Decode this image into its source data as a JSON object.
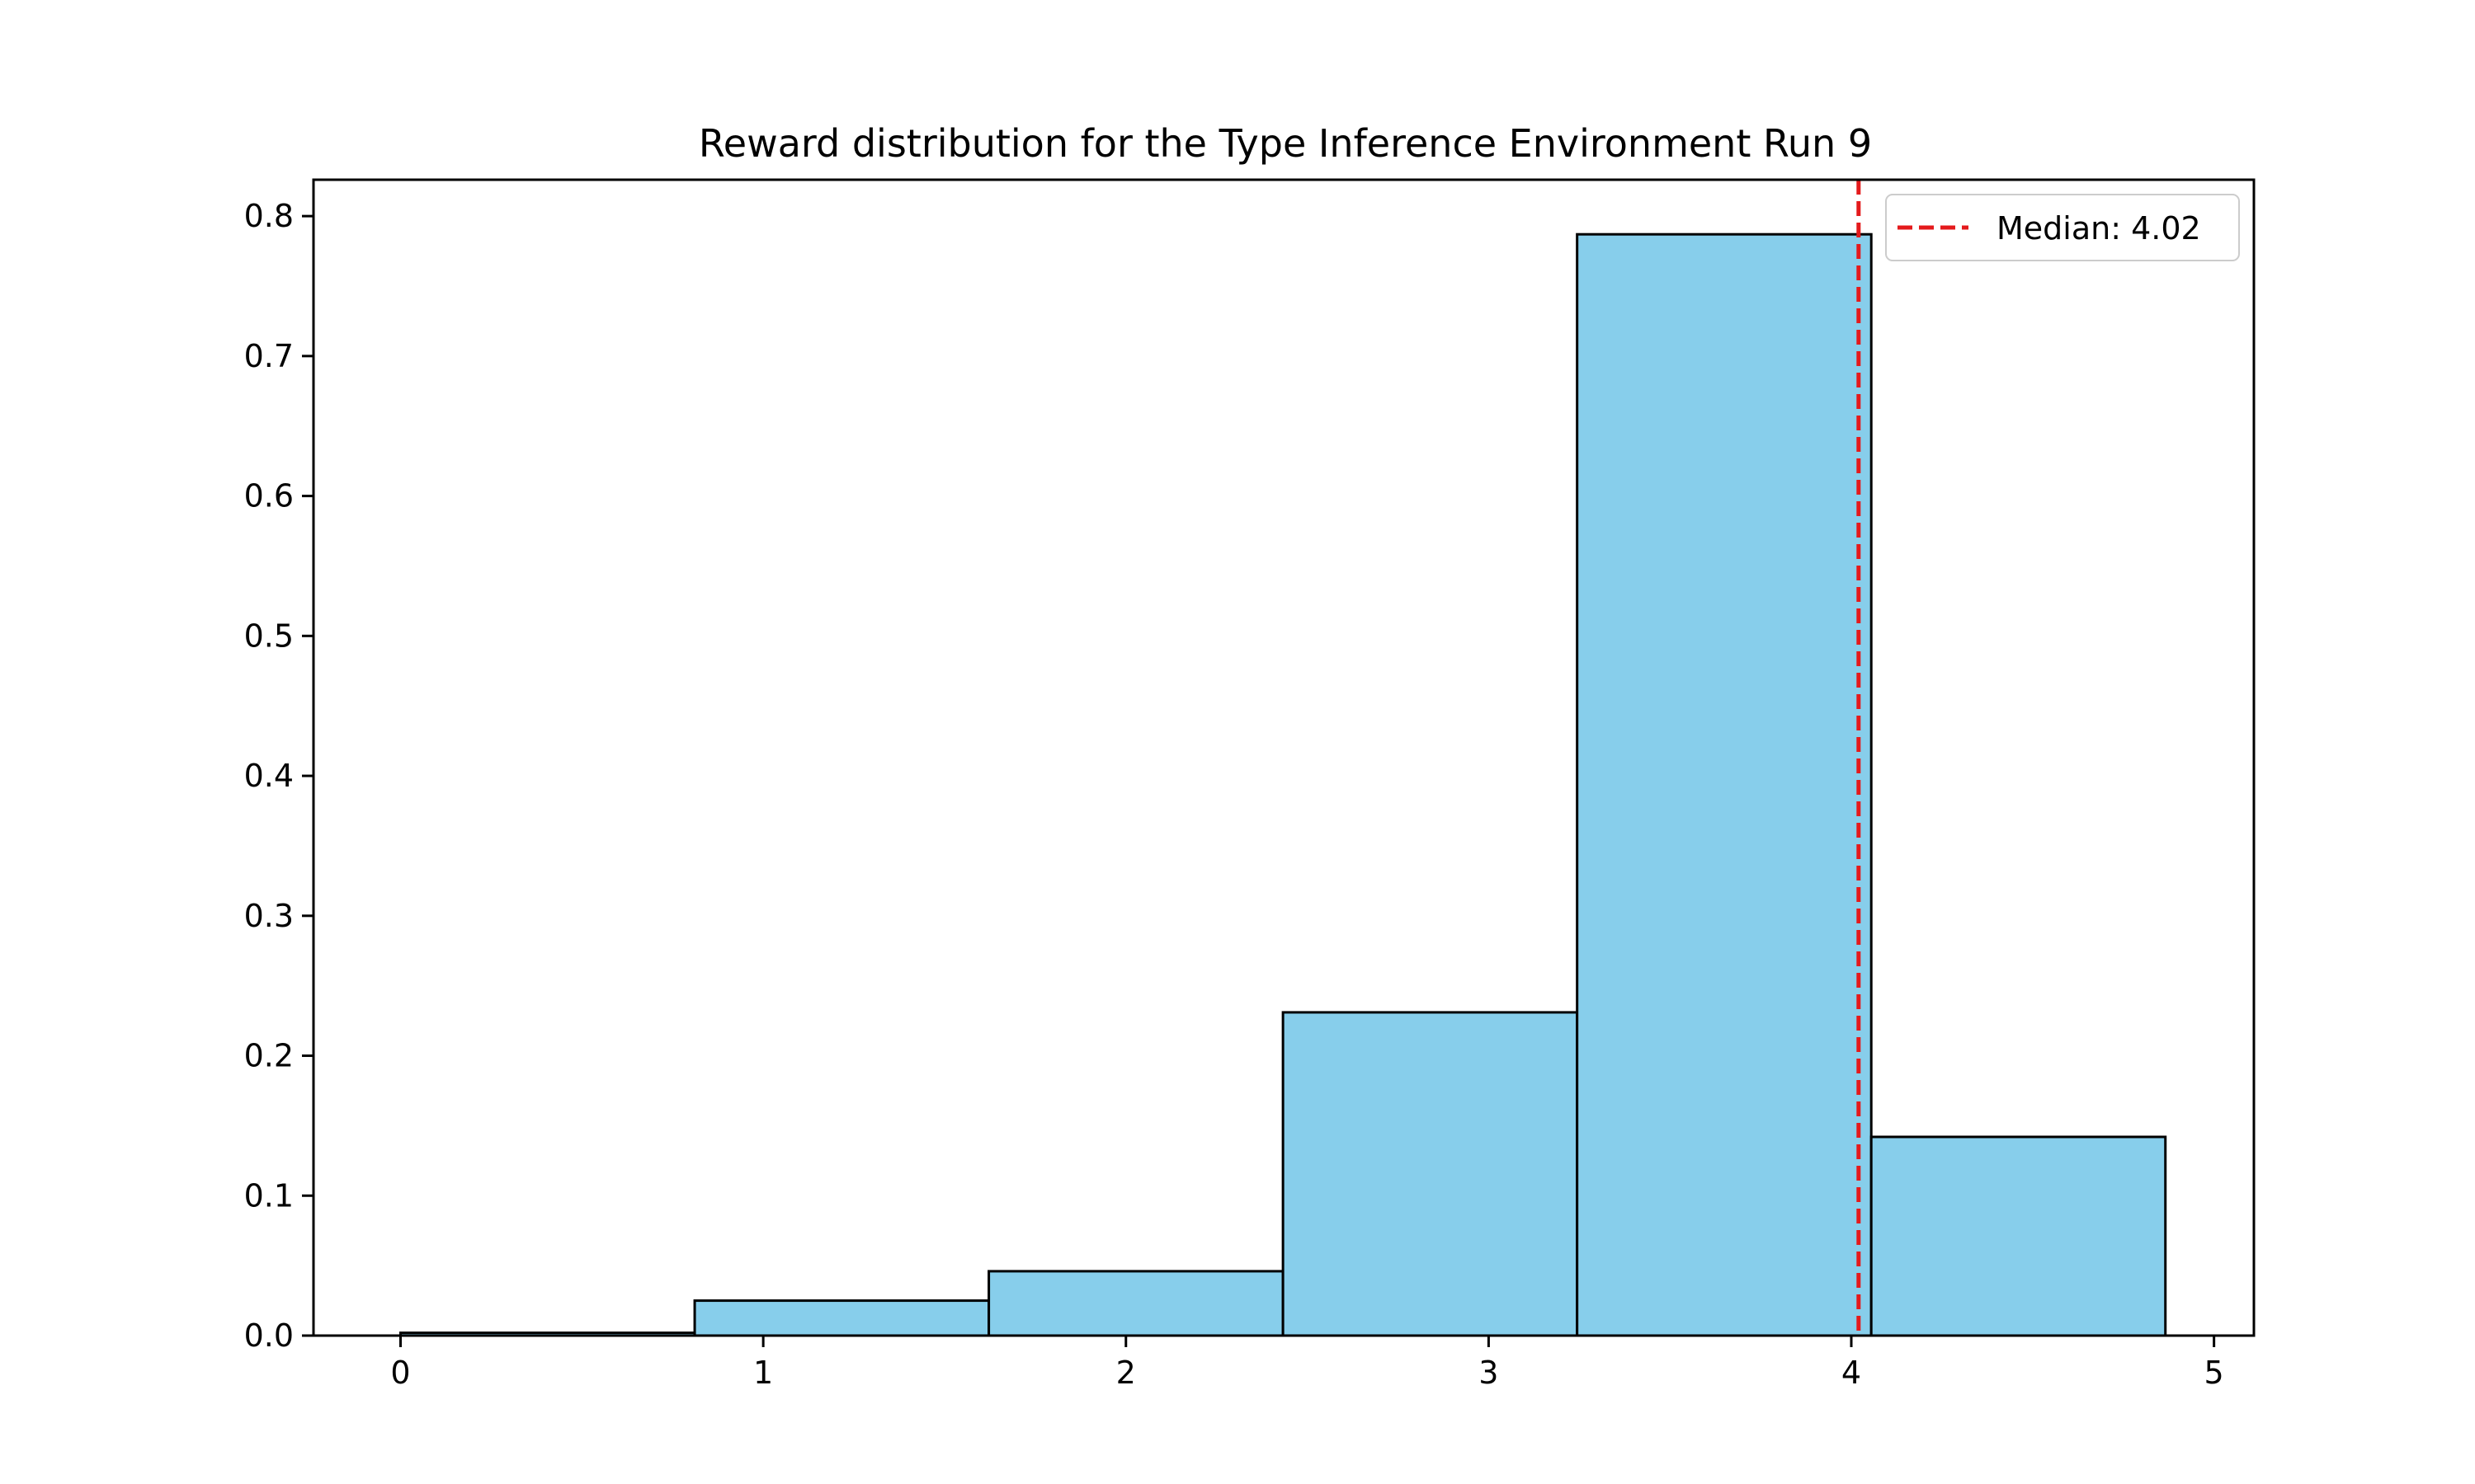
{
  "chart_data": {
    "type": "bar",
    "title": "Reward distribution for the Type Inference Environment Run 9",
    "xlabel": "",
    "ylabel": "",
    "xlim": [
      -0.24,
      5.11
    ],
    "ylim": [
      0,
      0.826
    ],
    "x_ticks": [
      0,
      1,
      2,
      3,
      4,
      5
    ],
    "y_ticks": [
      0.0,
      0.1,
      0.2,
      0.3,
      0.4,
      0.5,
      0.6,
      0.7,
      0.8
    ],
    "bin_edges": [
      0.0,
      0.811,
      1.622,
      2.433,
      3.244,
      4.055,
      4.866
    ],
    "values": [
      0.002,
      0.025,
      0.046,
      0.231,
      0.787,
      0.142
    ],
    "bar_color": "#87CEEB",
    "edge_color": "#000000",
    "grid": false,
    "median": {
      "value": 4.02,
      "label": "Median: 4.02",
      "color": "#e41a1c",
      "style": "dashed"
    },
    "legend": {
      "placement": "top-right"
    }
  }
}
